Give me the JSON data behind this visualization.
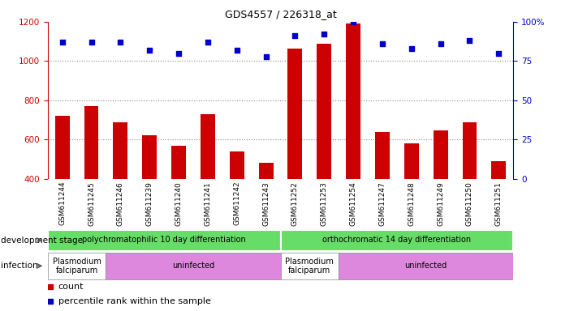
{
  "title": "GDS4557 / 226318_at",
  "samples": [
    "GSM611244",
    "GSM611245",
    "GSM611246",
    "GSM611239",
    "GSM611240",
    "GSM611241",
    "GSM611242",
    "GSM611243",
    "GSM611252",
    "GSM611253",
    "GSM611254",
    "GSM611247",
    "GSM611248",
    "GSM611249",
    "GSM611250",
    "GSM611251"
  ],
  "bar_values": [
    720,
    770,
    690,
    620,
    570,
    730,
    540,
    480,
    1065,
    1090,
    1190,
    640,
    580,
    645,
    690,
    490
  ],
  "dot_values_pct": [
    87,
    87,
    87,
    82,
    80,
    87,
    82,
    78,
    91,
    92,
    100,
    86,
    83,
    86,
    88,
    80
  ],
  "bar_color": "#cc0000",
  "dot_color": "#0000cc",
  "ylim_left": [
    400,
    1200
  ],
  "ylim_right": [
    0,
    100
  ],
  "yticks_left": [
    400,
    600,
    800,
    1000,
    1200
  ],
  "yticks_right": [
    0,
    25,
    50,
    75,
    100
  ],
  "grid_values": [
    600,
    800,
    1000
  ],
  "left_axis_color": "#cc0000",
  "right_axis_color": "#0000cc",
  "xtick_bg_color": "#d8d8d8",
  "dev_color": "#66dd66",
  "infection_colors": [
    "#ffffff",
    "#dd88dd",
    "#ffffff",
    "#dd88dd"
  ],
  "legend_items": [
    {
      "color": "#cc0000",
      "label": "count"
    },
    {
      "color": "#0000cc",
      "label": "percentile rank within the sample"
    }
  ],
  "xlabel_devstage": "development stage",
  "xlabel_infection": "infection"
}
